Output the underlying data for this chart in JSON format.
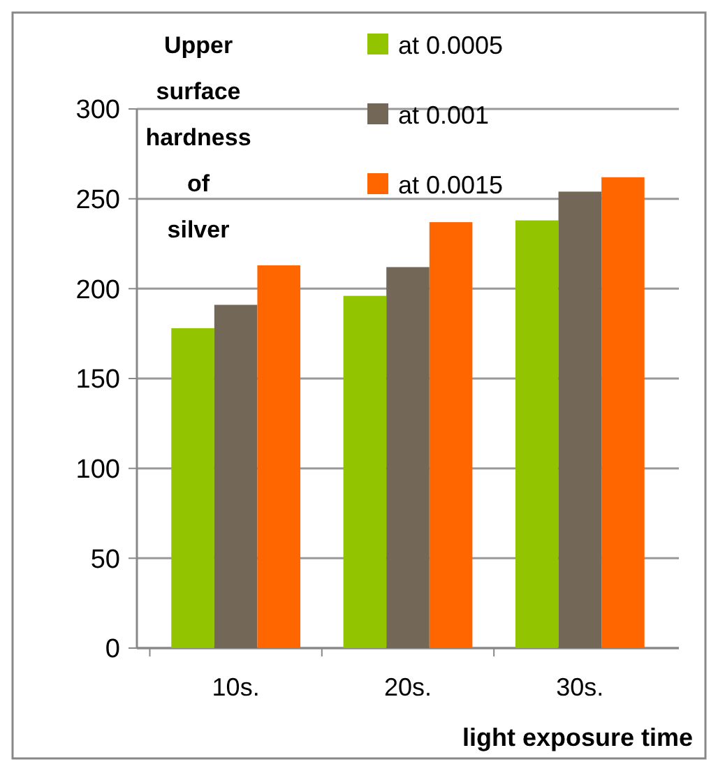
{
  "chart_data": {
    "type": "bar",
    "ylabel": "Upper surface hardness of silver",
    "xlabel": "light exposure time",
    "categories": [
      "10s.",
      "20s.",
      "30s."
    ],
    "series": [
      {
        "name": "at 0.0005",
        "color": "#92c500",
        "values": [
          178,
          196,
          238
        ]
      },
      {
        "name": "at 0.001",
        "color": "#736857",
        "values": [
          191,
          212,
          254
        ]
      },
      {
        "name": "at 0.0015",
        "color": "#ff6600",
        "values": [
          213,
          237,
          262
        ]
      }
    ],
    "ylim": [
      0,
      300
    ],
    "yticks": [
      0,
      50,
      100,
      150,
      200,
      250,
      300
    ],
    "grid": "y",
    "legend": "top"
  }
}
